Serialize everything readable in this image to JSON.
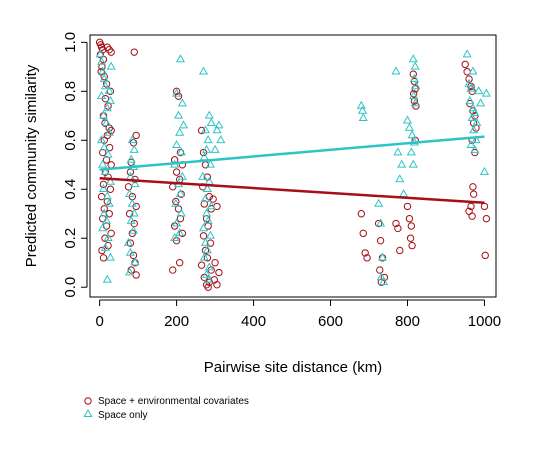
{
  "chart_data": {
    "type": "scatter",
    "title": "",
    "xlabel": "Pairwise site distance (km)",
    "ylabel": "Predicted community similarity",
    "xlim": [
      -25,
      1030
    ],
    "ylim": [
      -0.04,
      1.03
    ],
    "x_ticks": [
      0,
      200,
      400,
      600,
      800,
      1000
    ],
    "x_tick_labels": [
      "0",
      "200",
      "400",
      "600",
      "800",
      "1000"
    ],
    "y_ticks": [
      0.0,
      0.2,
      0.4,
      0.6,
      0.8,
      1.0
    ],
    "y_tick_labels": [
      "0.0",
      "0.2",
      "0.4",
      "0.6",
      "0.8",
      "1.0"
    ],
    "grid": false,
    "legend_position": "bottom-left",
    "series": [
      {
        "name": "Space + environmental covariates",
        "marker": "circle",
        "color": "#a50f15",
        "trend": {
          "x": [
            0,
            1000
          ],
          "y": [
            0.445,
            0.345
          ]
        },
        "points": [
          [
            0,
            1.0
          ],
          [
            3,
            0.99
          ],
          [
            5,
            0.98
          ],
          [
            8,
            0.97
          ],
          [
            2,
            0.95
          ],
          [
            10,
            0.93
          ],
          [
            6,
            0.9
          ],
          [
            4,
            0.88
          ],
          [
            12,
            0.86
          ],
          [
            20,
            0.98
          ],
          [
            25,
            0.97
          ],
          [
            30,
            0.96
          ],
          [
            18,
            0.83
          ],
          [
            28,
            0.8
          ],
          [
            15,
            0.77
          ],
          [
            22,
            0.74
          ],
          [
            10,
            0.7
          ],
          [
            14,
            0.67
          ],
          [
            25,
            0.65
          ],
          [
            30,
            0.64
          ],
          [
            20,
            0.62
          ],
          [
            12,
            0.6
          ],
          [
            26,
            0.57
          ],
          [
            8,
            0.55
          ],
          [
            18,
            0.52
          ],
          [
            30,
            0.5
          ],
          [
            15,
            0.47
          ],
          [
            22,
            0.45
          ],
          [
            10,
            0.42
          ],
          [
            28,
            0.4
          ],
          [
            5,
            0.37
          ],
          [
            20,
            0.35
          ],
          [
            12,
            0.32
          ],
          [
            25,
            0.3
          ],
          [
            8,
            0.28
          ],
          [
            18,
            0.25
          ],
          [
            30,
            0.22
          ],
          [
            14,
            0.2
          ],
          [
            22,
            0.17
          ],
          [
            6,
            0.15
          ],
          [
            10,
            0.12
          ],
          [
            90,
            0.96
          ],
          [
            95,
            0.62
          ],
          [
            88,
            0.59
          ],
          [
            82,
            0.51
          ],
          [
            80,
            0.47
          ],
          [
            92,
            0.44
          ],
          [
            75,
            0.41
          ],
          [
            85,
            0.37
          ],
          [
            95,
            0.33
          ],
          [
            78,
            0.3
          ],
          [
            90,
            0.26
          ],
          [
            85,
            0.22
          ],
          [
            80,
            0.18
          ],
          [
            88,
            0.13
          ],
          [
            92,
            0.1
          ],
          [
            82,
            0.07
          ],
          [
            95,
            0.05
          ],
          [
            200,
            0.8
          ],
          [
            205,
            0.78
          ],
          [
            210,
            0.55
          ],
          [
            195,
            0.52
          ],
          [
            215,
            0.5
          ],
          [
            200,
            0.47
          ],
          [
            208,
            0.44
          ],
          [
            190,
            0.41
          ],
          [
            212,
            0.38
          ],
          [
            198,
            0.35
          ],
          [
            205,
            0.32
          ],
          [
            210,
            0.28
          ],
          [
            195,
            0.25
          ],
          [
            215,
            0.22
          ],
          [
            200,
            0.19
          ],
          [
            208,
            0.1
          ],
          [
            190,
            0.07
          ],
          [
            265,
            0.64
          ],
          [
            270,
            0.55
          ],
          [
            275,
            0.5
          ],
          [
            280,
            0.45
          ],
          [
            268,
            0.41
          ],
          [
            285,
            0.37
          ],
          [
            272,
            0.34
          ],
          [
            290,
            0.32
          ],
          [
            278,
            0.28
          ],
          [
            282,
            0.25
          ],
          [
            270,
            0.21
          ],
          [
            288,
            0.18
          ],
          [
            275,
            0.15
          ],
          [
            280,
            0.12
          ],
          [
            265,
            0.09
          ],
          [
            290,
            0.07
          ],
          [
            272,
            0.04
          ],
          [
            285,
            0.02
          ],
          [
            278,
            0.01
          ],
          [
            282,
            0.0
          ],
          [
            295,
            0.36
          ],
          [
            305,
            0.33
          ],
          [
            300,
            0.1
          ],
          [
            310,
            0.06
          ],
          [
            298,
            0.03
          ],
          [
            305,
            0.01
          ],
          [
            680,
            0.3
          ],
          [
            685,
            0.22
          ],
          [
            690,
            0.14
          ],
          [
            695,
            0.12
          ],
          [
            725,
            0.26
          ],
          [
            730,
            0.19
          ],
          [
            735,
            0.12
          ],
          [
            728,
            0.07
          ],
          [
            740,
            0.04
          ],
          [
            732,
            0.02
          ],
          [
            770,
            0.26
          ],
          [
            775,
            0.24
          ],
          [
            780,
            0.15
          ],
          [
            800,
            0.33
          ],
          [
            805,
            0.28
          ],
          [
            810,
            0.25
          ],
          [
            808,
            0.2
          ],
          [
            812,
            0.17
          ],
          [
            815,
            0.87
          ],
          [
            818,
            0.84
          ],
          [
            820,
            0.81
          ],
          [
            816,
            0.79
          ],
          [
            818,
            0.76
          ],
          [
            822,
            0.74
          ],
          [
            820,
            0.6
          ],
          [
            950,
            0.91
          ],
          [
            955,
            0.88
          ],
          [
            960,
            0.85
          ],
          [
            965,
            0.82
          ],
          [
            968,
            0.8
          ],
          [
            962,
            0.75
          ],
          [
            970,
            0.72
          ],
          [
            975,
            0.7
          ],
          [
            972,
            0.67
          ],
          [
            978,
            0.65
          ],
          [
            968,
            0.6
          ],
          [
            975,
            0.55
          ],
          [
            970,
            0.41
          ],
          [
            972,
            0.38
          ],
          [
            965,
            0.33
          ],
          [
            960,
            0.31
          ],
          [
            968,
            0.29
          ],
          [
            1000,
            0.33
          ],
          [
            1005,
            0.28
          ],
          [
            1002,
            0.13
          ]
        ]
      },
      {
        "name": "Space only",
        "marker": "triangle",
        "color": "#2ec4c4",
        "trend": {
          "x": [
            0,
            1000
          ],
          "y": [
            0.48,
            0.615
          ]
        },
        "points": [
          [
            2,
            0.95
          ],
          [
            5,
            0.92
          ],
          [
            8,
            0.88
          ],
          [
            12,
            0.85
          ],
          [
            15,
            0.82
          ],
          [
            25,
            0.8
          ],
          [
            28,
            0.76
          ],
          [
            20,
            0.73
          ],
          [
            10,
            0.7
          ],
          [
            18,
            0.67
          ],
          [
            25,
            0.63
          ],
          [
            5,
            0.6
          ],
          [
            12,
            0.57
          ],
          [
            22,
            0.54
          ],
          [
            8,
            0.5
          ],
          [
            15,
            0.47
          ],
          [
            28,
            0.43
          ],
          [
            10,
            0.4
          ],
          [
            20,
            0.37
          ],
          [
            25,
            0.34
          ],
          [
            12,
            0.3
          ],
          [
            18,
            0.27
          ],
          [
            8,
            0.24
          ],
          [
            22,
            0.2
          ],
          [
            15,
            0.16
          ],
          [
            28,
            0.12
          ],
          [
            20,
            0.03
          ],
          [
            30,
            0.9
          ],
          [
            5,
            0.78
          ],
          [
            85,
            0.6
          ],
          [
            90,
            0.56
          ],
          [
            82,
            0.52
          ],
          [
            88,
            0.49
          ],
          [
            80,
            0.45
          ],
          [
            92,
            0.42
          ],
          [
            78,
            0.38
          ],
          [
            85,
            0.34
          ],
          [
            90,
            0.3
          ],
          [
            82,
            0.27
          ],
          [
            88,
            0.23
          ],
          [
            75,
            0.18
          ],
          [
            80,
            0.14
          ],
          [
            92,
            0.1
          ],
          [
            78,
            0.06
          ],
          [
            200,
            0.79
          ],
          [
            210,
            0.93
          ],
          [
            215,
            0.75
          ],
          [
            205,
            0.7
          ],
          [
            218,
            0.66
          ],
          [
            208,
            0.63
          ],
          [
            200,
            0.58
          ],
          [
            212,
            0.55
          ],
          [
            195,
            0.5
          ],
          [
            215,
            0.45
          ],
          [
            205,
            0.42
          ],
          [
            210,
            0.38
          ],
          [
            198,
            0.34
          ],
          [
            212,
            0.3
          ],
          [
            200,
            0.26
          ],
          [
            208,
            0.22
          ],
          [
            195,
            0.2
          ],
          [
            270,
            0.88
          ],
          [
            285,
            0.7
          ],
          [
            290,
            0.67
          ],
          [
            275,
            0.64
          ],
          [
            282,
            0.6
          ],
          [
            278,
            0.56
          ],
          [
            272,
            0.53
          ],
          [
            288,
            0.5
          ],
          [
            268,
            0.45
          ],
          [
            285,
            0.43
          ],
          [
            280,
            0.4
          ],
          [
            275,
            0.36
          ],
          [
            290,
            0.33
          ],
          [
            278,
            0.3
          ],
          [
            282,
            0.27
          ],
          [
            270,
            0.24
          ],
          [
            288,
            0.21
          ],
          [
            275,
            0.18
          ],
          [
            280,
            0.15
          ],
          [
            272,
            0.12
          ],
          [
            285,
            0.08
          ],
          [
            278,
            0.05
          ],
          [
            282,
            0.03
          ],
          [
            310,
            0.66
          ],
          [
            305,
            0.64
          ],
          [
            315,
            0.6
          ],
          [
            300,
            0.56
          ],
          [
            680,
            0.74
          ],
          [
            683,
            0.72
          ],
          [
            685,
            0.69
          ],
          [
            725,
            0.34
          ],
          [
            730,
            0.26
          ],
          [
            735,
            0.12
          ],
          [
            732,
            0.04
          ],
          [
            738,
            0.02
          ],
          [
            770,
            0.88
          ],
          [
            775,
            0.55
          ],
          [
            785,
            0.5
          ],
          [
            780,
            0.44
          ],
          [
            790,
            0.38
          ],
          [
            800,
            0.68
          ],
          [
            805,
            0.65
          ],
          [
            812,
            0.62
          ],
          [
            818,
            0.59
          ],
          [
            815,
            0.93
          ],
          [
            820,
            0.9
          ],
          [
            818,
            0.85
          ],
          [
            822,
            0.82
          ],
          [
            816,
            0.78
          ],
          [
            820,
            0.75
          ],
          [
            810,
            0.55
          ],
          [
            815,
            0.5
          ],
          [
            955,
            0.95
          ],
          [
            960,
            0.83
          ],
          [
            965,
            0.81
          ],
          [
            962,
            0.76
          ],
          [
            970,
            0.73
          ],
          [
            975,
            0.71
          ],
          [
            968,
            0.69
          ],
          [
            980,
            0.67
          ],
          [
            972,
            0.64
          ],
          [
            978,
            0.6
          ],
          [
            965,
            0.58
          ],
          [
            975,
            0.56
          ],
          [
            985,
            0.8
          ],
          [
            990,
            0.75
          ],
          [
            1000,
            0.47
          ],
          [
            1005,
            0.79
          ],
          [
            970,
            0.88
          ]
        ]
      }
    ]
  }
}
